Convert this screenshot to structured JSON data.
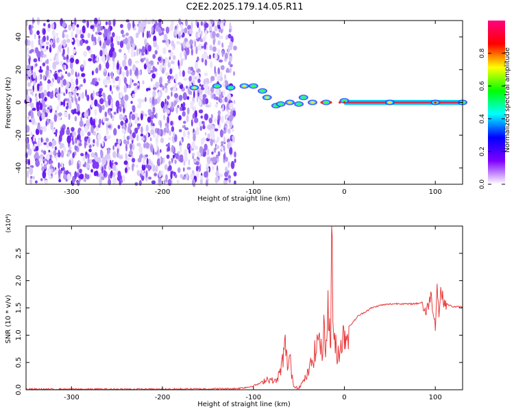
{
  "title": "C2E2.2025.179.14.05.R11",
  "chart_data": [
    {
      "type": "heatmap",
      "xlabel": "Height of straight line (km)",
      "ylabel": "Frequency (Hz)",
      "xlim": [
        -350,
        130
      ],
      "ylim": [
        -50,
        50
      ],
      "xticks": [
        -300,
        -200,
        -100,
        0,
        100
      ],
      "yticks": [
        -40,
        -20,
        0,
        20,
        40
      ],
      "colorbar": {
        "label": "Normalized spectral amplitude",
        "range": [
          0,
          1
        ],
        "ticks": [
          "0.0",
          "0.2",
          "0.4",
          "0.6",
          "0.8"
        ],
        "colormap": [
          "#ffffff",
          "#7f00ff",
          "#0000ff",
          "#00ffff",
          "#00ff00",
          "#ffff00",
          "#ff0000",
          "#ff0080"
        ]
      },
      "features": {
        "noise_region_x": [
          -350,
          -120
        ],
        "signal_track": [
          {
            "x": -165,
            "freq": 9
          },
          {
            "x": -140,
            "freq": 10
          },
          {
            "x": -125,
            "freq": 9
          },
          {
            "x": -110,
            "freq": 10
          },
          {
            "x": -100,
            "freq": 10
          },
          {
            "x": -90,
            "freq": 7
          },
          {
            "x": -85,
            "freq": 3
          },
          {
            "x": -75,
            "freq": -2
          },
          {
            "x": -70,
            "freq": -1
          },
          {
            "x": -60,
            "freq": 0
          },
          {
            "x": -50,
            "freq": -1
          },
          {
            "x": -45,
            "freq": 3
          },
          {
            "x": -35,
            "freq": 0
          },
          {
            "x": -20,
            "freq": 0
          },
          {
            "x": 0,
            "freq": 1
          },
          {
            "x": 50,
            "freq": 0
          },
          {
            "x": 100,
            "freq": 0
          },
          {
            "x": 130,
            "freq": 0
          }
        ]
      }
    },
    {
      "type": "line",
      "xlabel": "Height of straight line (km)",
      "ylabel": "SNR (10 * v/v)",
      "y_multiplier": "(x10⁴)",
      "xlim": [
        -350,
        130
      ],
      "ylim": [
        0,
        3.0
      ],
      "xticks": [
        -300,
        -200,
        -100,
        0,
        100
      ],
      "yticks": [
        "0.0",
        "0.5",
        "1.0",
        "1.5",
        "2.0",
        "2.5"
      ],
      "line_color": "#e8393a",
      "series": [
        {
          "x": [
            -350,
            -300,
            -200,
            -120,
            -105,
            -95,
            -85,
            -75,
            -70,
            -68,
            -65,
            -62,
            -60,
            -58,
            -55,
            -50,
            -45,
            -40,
            -35,
            -30,
            -28,
            -25,
            -22,
            -20,
            -18,
            -15,
            -14,
            -12,
            -10,
            -8,
            -5,
            0,
            5,
            10,
            15,
            20,
            25,
            30,
            40,
            50,
            60,
            70,
            80,
            85,
            90,
            95,
            100,
            102,
            104,
            106,
            110,
            115,
            120,
            125,
            130
          ],
          "y": [
            0.01,
            0.01,
            0.01,
            0.02,
            0.05,
            0.1,
            0.2,
            0.15,
            0.35,
            0.55,
            0.8,
            0.4,
            0.65,
            0.25,
            0.05,
            0.05,
            0.15,
            0.3,
            0.55,
            0.8,
            1.1,
            0.6,
            1.3,
            0.7,
            1.5,
            0.9,
            2.9,
            0.8,
            1.0,
            0.6,
            0.8,
            1.0,
            1.15,
            1.25,
            1.35,
            1.4,
            1.45,
            1.5,
            1.55,
            1.57,
            1.58,
            1.57,
            1.58,
            1.6,
            1.4,
            1.75,
            1.2,
            1.9,
            1.4,
            1.8,
            1.6,
            1.55,
            1.52,
            1.52,
            1.52
          ]
        }
      ]
    }
  ]
}
